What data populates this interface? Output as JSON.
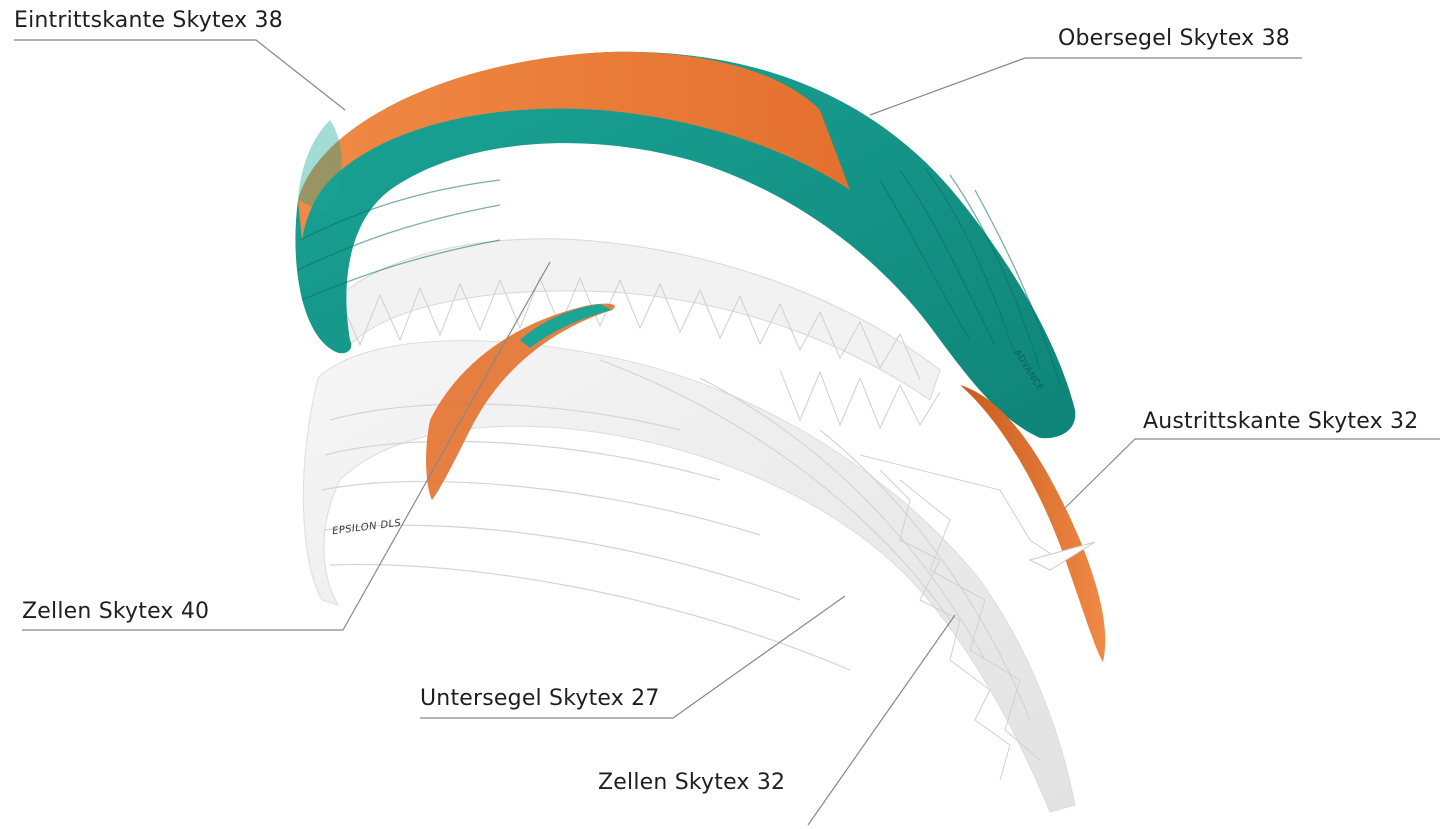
{
  "labels": {
    "leading_edge": "Eintrittskante Skytex 38",
    "upper_surface": "Obersegel Skytex 38",
    "trailing_edge": "Austrittskante Skytex 32",
    "cells_40": "Zellen Skytex 40",
    "lower_surface": "Untersegel Skytex 27",
    "cells_32": "Zellen Skytex 32"
  },
  "brand": {
    "canopy_text": "ADVANCE",
    "model_text": "EPSILON DLS"
  },
  "colors": {
    "canopy_teal": "#179f92",
    "canopy_teal_dark": "#0d7d72",
    "accent_orange": "#ee7e3c",
    "accent_orange_dark": "#c8561a",
    "structure_white": "#eeeeee",
    "leader_line": "#888888"
  }
}
